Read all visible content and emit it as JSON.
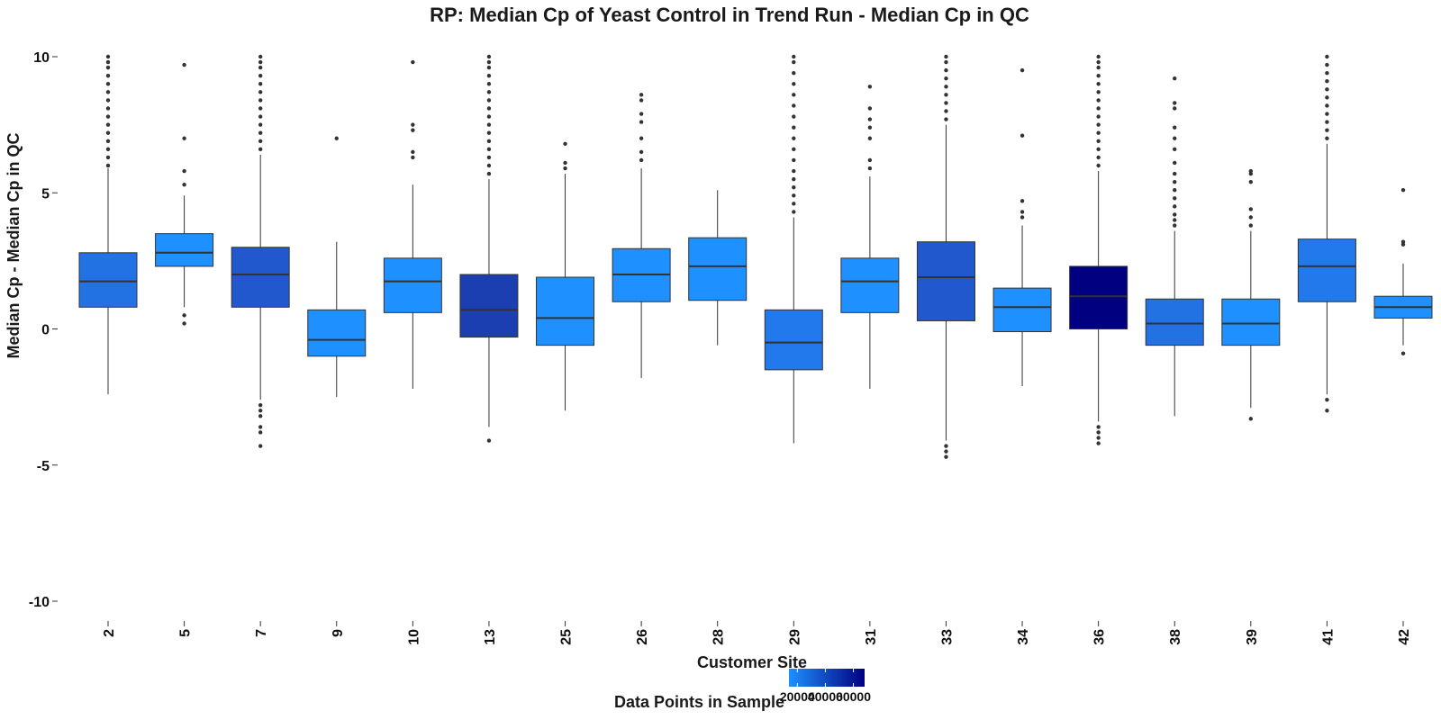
{
  "chart_data": {
    "type": "boxplot",
    "title": "RP: Median Cp of Yeast Control in Trend Run - Median Cp in QC",
    "xlabel": "Customer Site",
    "ylabel": "Median Cp - Median Cp in QC",
    "ylim": [
      -11,
      10.6
    ],
    "y_ticks": [
      10,
      5,
      0,
      -5,
      -10
    ],
    "y_tick_labels": [
      "10",
      "5",
      "0",
      "-5",
      "-10"
    ],
    "grid": false,
    "categories": [
      "2",
      "5",
      "7",
      "9",
      "10",
      "13",
      "25",
      "26",
      "28",
      "29",
      "31",
      "33",
      "34",
      "36",
      "38",
      "39",
      "41",
      "42"
    ],
    "series": [
      {
        "site": "2",
        "q1": 0.8,
        "median": 1.75,
        "q3": 2.8,
        "whisker_low": -2.4,
        "whisker_high": 5.9,
        "fill": "#2272e4",
        "outliers_low": [],
        "outliers_high": [
          6.0,
          6.3,
          6.6,
          6.9,
          7.2,
          7.5,
          7.8,
          8.1,
          8.4,
          8.7,
          9.0,
          9.3,
          9.6,
          9.8,
          10.0
        ]
      },
      {
        "site": "5",
        "q1": 2.3,
        "median": 2.8,
        "q3": 3.5,
        "whisker_low": 0.8,
        "whisker_high": 4.9,
        "fill": "#1e90ff",
        "outliers_low": [
          0.5,
          0.2
        ],
        "outliers_high": [
          5.3,
          5.8,
          7.0,
          9.7
        ]
      },
      {
        "site": "7",
        "q1": 0.8,
        "median": 2.0,
        "q3": 3.0,
        "whisker_low": -2.6,
        "whisker_high": 6.4,
        "fill": "#2158cd",
        "outliers_low": [
          -2.8,
          -3.0,
          -3.2,
          -3.6,
          -3.8,
          -4.3
        ],
        "outliers_high": [
          6.6,
          6.9,
          7.2,
          7.5,
          7.8,
          8.1,
          8.4,
          8.7,
          9.0,
          9.3,
          9.6,
          9.8,
          10.0
        ]
      },
      {
        "site": "9",
        "q1": -1.0,
        "median": -0.4,
        "q3": 0.7,
        "whisker_low": -2.5,
        "whisker_high": 3.2,
        "fill": "#1e90ff",
        "outliers_low": [],
        "outliers_high": [
          7.0
        ]
      },
      {
        "site": "10",
        "q1": 0.6,
        "median": 1.75,
        "q3": 2.6,
        "whisker_low": -2.2,
        "whisker_high": 5.3,
        "fill": "#1e90ff",
        "outliers_low": [],
        "outliers_high": [
          6.3,
          6.5,
          7.3,
          7.5,
          9.8
        ]
      },
      {
        "site": "13",
        "q1": -0.3,
        "median": 0.7,
        "q3": 2.0,
        "whisker_low": -3.6,
        "whisker_high": 5.5,
        "fill": "#1b3eb1",
        "outliers_low": [
          -4.1
        ],
        "outliers_high": [
          5.7,
          6.0,
          6.3,
          6.6,
          6.9,
          7.2,
          7.5,
          7.8,
          8.1,
          8.4,
          8.7,
          9.0,
          9.3,
          9.6,
          9.8,
          10.0
        ]
      },
      {
        "site": "25",
        "q1": -0.6,
        "median": 0.4,
        "q3": 1.9,
        "whisker_low": -3.0,
        "whisker_high": 5.7,
        "fill": "#1e90ff",
        "outliers_low": [],
        "outliers_high": [
          5.9,
          6.1,
          6.8
        ]
      },
      {
        "site": "26",
        "q1": 1.0,
        "median": 2.0,
        "q3": 2.95,
        "whisker_low": -1.8,
        "whisker_high": 5.9,
        "fill": "#1e90ff",
        "outliers_low": [],
        "outliers_high": [
          6.2,
          6.5,
          7.0,
          7.6,
          7.9,
          8.4,
          8.6
        ]
      },
      {
        "site": "28",
        "q1": 1.05,
        "median": 2.3,
        "q3": 3.35,
        "whisker_low": -0.6,
        "whisker_high": 5.1,
        "fill": "#1e90ff",
        "outliers_low": [],
        "outliers_high": []
      },
      {
        "site": "29",
        "q1": -1.5,
        "median": -0.5,
        "q3": 0.7,
        "whisker_low": -4.2,
        "whisker_high": 4.1,
        "fill": "#2179ec",
        "outliers_low": [],
        "outliers_high": [
          4.3,
          4.6,
          4.9,
          5.2,
          5.5,
          5.8,
          6.2,
          6.6,
          7.0,
          7.4,
          7.8,
          8.2,
          8.6,
          9.0,
          9.4,
          9.8,
          10.0
        ]
      },
      {
        "site": "31",
        "q1": 0.6,
        "median": 1.75,
        "q3": 2.6,
        "whisker_low": -2.2,
        "whisker_high": 5.6,
        "fill": "#1e90ff",
        "outliers_low": [],
        "outliers_high": [
          5.9,
          6.2,
          7.0,
          7.4,
          7.7,
          8.1,
          8.9
        ]
      },
      {
        "site": "33",
        "q1": 0.3,
        "median": 1.9,
        "q3": 3.2,
        "whisker_low": -4.1,
        "whisker_high": 7.5,
        "fill": "#2158cd",
        "outliers_low": [
          -4.3,
          -4.5,
          -4.7
        ],
        "outliers_high": [
          7.7,
          8.0,
          8.3,
          8.6,
          8.9,
          9.2,
          9.5,
          9.8,
          10.0
        ]
      },
      {
        "site": "34",
        "q1": -0.1,
        "median": 0.8,
        "q3": 1.5,
        "whisker_low": -2.1,
        "whisker_high": 3.8,
        "fill": "#1e90ff",
        "outliers_low": [],
        "outliers_high": [
          4.1,
          4.3,
          4.7,
          7.1,
          9.5
        ]
      },
      {
        "site": "36",
        "q1": 0.0,
        "median": 1.2,
        "q3": 2.3,
        "whisker_low": -3.4,
        "whisker_high": 5.8,
        "fill": "#000080",
        "outliers_low": [
          -3.6,
          -3.8,
          -4.0,
          -4.2
        ],
        "outliers_high": [
          6.0,
          6.3,
          6.6,
          6.9,
          7.2,
          7.5,
          7.8,
          8.1,
          8.4,
          8.7,
          9.0,
          9.3,
          9.6,
          9.8,
          10.0
        ]
      },
      {
        "site": "38",
        "q1": -0.6,
        "median": 0.2,
        "q3": 1.1,
        "whisker_low": -3.2,
        "whisker_high": 3.6,
        "fill": "#2272e4",
        "outliers_low": [],
        "outliers_high": [
          3.8,
          4.0,
          4.2,
          4.5,
          4.8,
          5.1,
          5.4,
          5.7,
          6.1,
          6.6,
          7.0,
          7.4,
          8.1,
          8.3,
          9.2
        ]
      },
      {
        "site": "39",
        "q1": -0.6,
        "median": 0.2,
        "q3": 1.1,
        "whisker_low": -2.9,
        "whisker_high": 3.6,
        "fill": "#1e90ff",
        "outliers_low": [
          -3.3
        ],
        "outliers_high": [
          3.8,
          4.1,
          4.4,
          5.4,
          5.7,
          5.8
        ]
      },
      {
        "site": "41",
        "q1": 1.0,
        "median": 2.3,
        "q3": 3.3,
        "whisker_low": -2.4,
        "whisker_high": 6.8,
        "fill": "#2179ec",
        "outliers_low": [
          -2.6,
          -3.0
        ],
        "outliers_high": [
          7.0,
          7.3,
          7.6,
          7.9,
          8.2,
          8.5,
          8.8,
          9.1,
          9.4,
          9.7,
          10.0
        ]
      },
      {
        "site": "42",
        "q1": 0.4,
        "median": 0.8,
        "q3": 1.2,
        "whisker_low": -0.6,
        "whisker_high": 2.4,
        "fill": "#1e90ff",
        "outliers_low": [
          -0.9
        ],
        "outliers_high": [
          3.1,
          3.2,
          5.1
        ]
      }
    ],
    "legend": {
      "title": "Data Points in Sample",
      "placement": "bottom",
      "type": "colorbar",
      "min": 14000,
      "max": 68000,
      "low_color": "#1e90ff",
      "high_color": "#000080",
      "ticks": [
        20000,
        40000,
        60000
      ],
      "tick_labels": [
        "20000",
        "40000",
        "60000"
      ]
    },
    "colors": {
      "whisker": "#333333",
      "median_line": "#333333",
      "outlier": "#333333",
      "box_border": "#333333"
    }
  }
}
